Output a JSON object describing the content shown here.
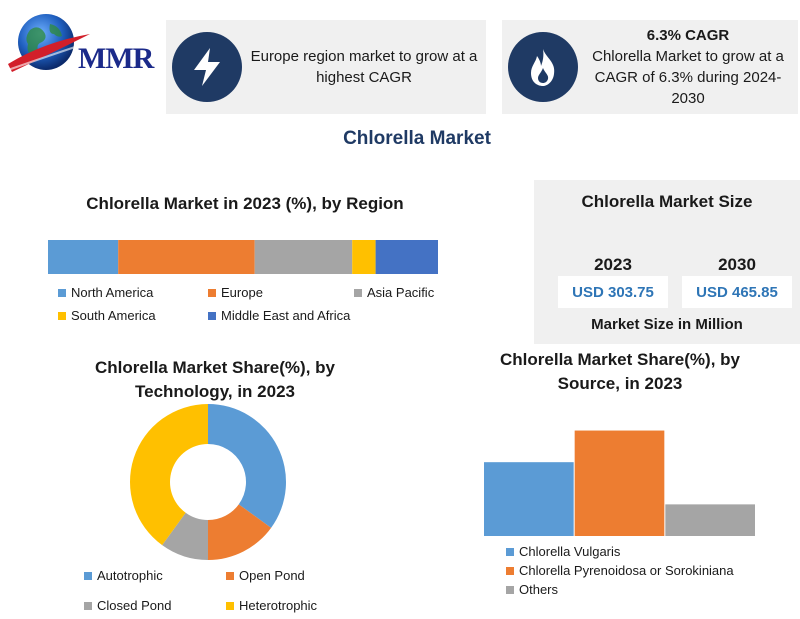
{
  "brand": {
    "logo_text": "MMR",
    "globe_color": "#1f5fbf"
  },
  "cards": [
    {
      "icon": "lightning-icon",
      "heading": "",
      "text": "Europe  region market to grow at a highest  CAGR"
    },
    {
      "icon": "flame-icon",
      "heading": "6.3% CAGR",
      "text": "Chlorella Market to grow at a CAGR of 6.3% during 2024-2030"
    }
  ],
  "page_title": "Chlorella Market",
  "colors": {
    "blue": "#5b9bd5",
    "orange": "#ed7d31",
    "gray": "#a5a5a5",
    "yellow": "#ffc000",
    "darkblue": "#4472c4",
    "navy": "#1f3a64"
  },
  "market_size": {
    "title": "Chlorella Market Size",
    "years": [
      {
        "year": "2023",
        "value": "USD 303.75"
      },
      {
        "year": "2030",
        "value": "USD 465.85"
      }
    ],
    "footer": "Market Size in Million"
  },
  "chart_data": [
    {
      "type": "bar",
      "stacked": true,
      "orientation": "horizontal",
      "title": "Chlorella Market in 2023 (%), by Region",
      "series": [
        {
          "name": "North America",
          "value": 18,
          "color": "#5b9bd5"
        },
        {
          "name": "Europe",
          "value": 35,
          "color": "#ed7d31"
        },
        {
          "name": "Asia Pacific",
          "value": 25,
          "color": "#a5a5a5"
        },
        {
          "name": "South America",
          "value": 6,
          "color": "#ffc000"
        },
        {
          "name": "Middle East and Africa",
          "value": 16,
          "color": "#4472c4"
        }
      ],
      "legend": "bottom"
    },
    {
      "type": "pie",
      "donut": true,
      "title": "Chlorella Market Share(%), by Technology, in 2023",
      "title_lines": [
        "Chlorella Market Share(%), by",
        "Technology, in 2023"
      ],
      "slices": [
        {
          "name": "Autotrophic",
          "value": 35,
          "color": "#5b9bd5"
        },
        {
          "name": "Open Pond",
          "value": 15,
          "color": "#ed7d31"
        },
        {
          "name": "Closed Pond",
          "value": 10,
          "color": "#a5a5a5"
        },
        {
          "name": "Heterotrophic",
          "value": 40,
          "color": "#ffc000"
        }
      ],
      "legend": "bottom"
    },
    {
      "type": "bar",
      "title": "Chlorella Market Share(%), by Source, in 2023",
      "title_lines": [
        "Chlorella Market Share(%), by",
        "Source, in 2023"
      ],
      "categories": [
        "Chlorella Vulgaris",
        "Chlorella Pyrenoidosa or Sorokiniana",
        "Others"
      ],
      "values": [
        35,
        50,
        15
      ],
      "colors": [
        "#5b9bd5",
        "#ed7d31",
        "#a5a5a5"
      ],
      "ylim": [
        0,
        55
      ],
      "legend": "bottom"
    }
  ]
}
